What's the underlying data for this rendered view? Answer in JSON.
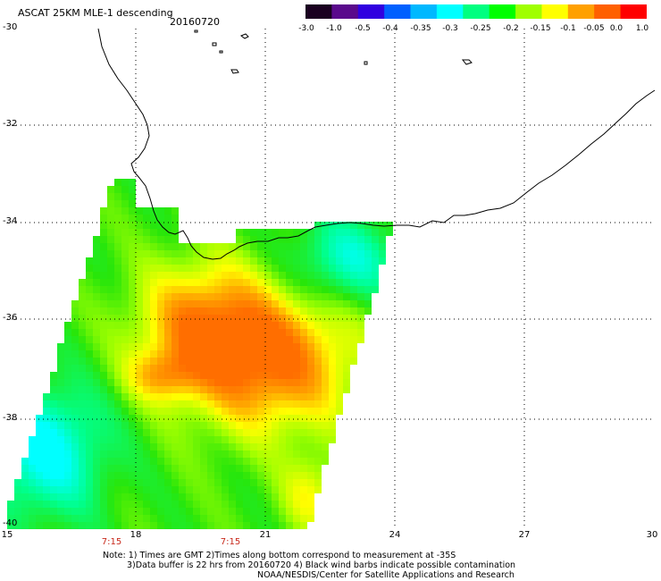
{
  "header": {
    "product_title": "ASCAT 25KM MLE-1 descending",
    "date": "20160720"
  },
  "colorbar": {
    "tick_labels": [
      "-3.0",
      "-1.0",
      "-0.5",
      "-0.4",
      "-0.35",
      "-0.3",
      "-0.25",
      "-0.2",
      "-0.15",
      "-0.1",
      "-0.05",
      "0.0",
      "1.0"
    ],
    "colors": [
      "#1a0020",
      "#5a0a8c",
      "#3000e0",
      "#0060ff",
      "#00b8ff",
      "#00ffff",
      "#00ff80",
      "#00ff00",
      "#a0ff00",
      "#ffff00",
      "#ffa000",
      "#ff6000",
      "#ff0000"
    ]
  },
  "map": {
    "y_labels": [
      "-30",
      "-32",
      "-34",
      "-36",
      "-38",
      "-40"
    ],
    "x_labels": [
      "15",
      "18",
      "21",
      "24",
      "27",
      "30"
    ],
    "lat_range": [
      -40,
      -30
    ],
    "lon_range": [
      15,
      30
    ],
    "pass_times": [
      "7:15",
      "7:15"
    ]
  },
  "notes": {
    "line1": "Note: 1) Times are GMT 2)Times along bottom correspond to measurement at -35S",
    "line2": "3)Data buffer is 22 hrs from 20160720 4) Black wind barbs indicate possible contamination",
    "line3": "NOAA/NESDIS/Center for Satellite Applications and Research"
  }
}
